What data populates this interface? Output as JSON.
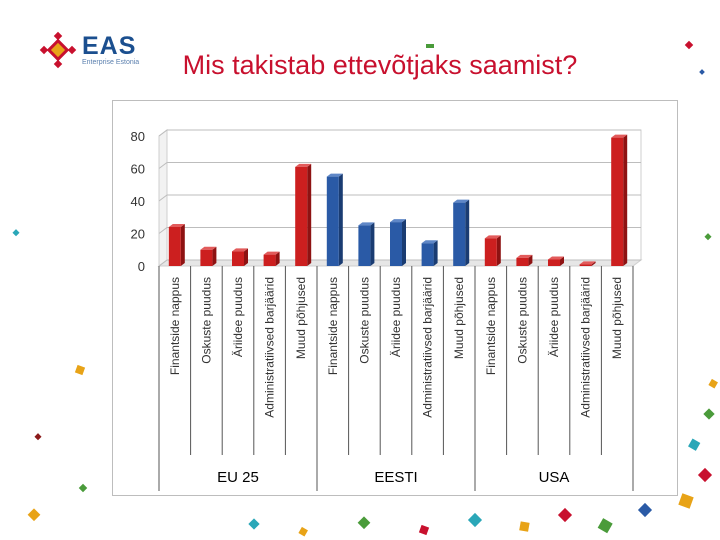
{
  "header": {
    "logo_name": "EAS",
    "logo_subtitle": "Enterprise Estonia",
    "title": "Mis takistab ettevõtjaks saamist?"
  },
  "colors": {
    "red": "#cc1f1f",
    "blue": "#2a5aa6",
    "title": "#c8102e"
  },
  "chart_data": {
    "type": "bar",
    "ylim": [
      0,
      80
    ],
    "yticks": [
      "0",
      "20",
      "40",
      "60",
      "80"
    ],
    "grid": true,
    "style": "3d",
    "categories": [
      "Finantside nappus",
      "Oskuste puudus",
      "Äriidee puudus",
      "Administratiivsed barjäärid",
      "Muud põhjused",
      "Finantside nappus",
      "Oskuste puudus",
      "Äriidee puudus",
      "Administratiivsed barjäärid",
      "Muud põhjused",
      "Finantside nappus",
      "Oskuste puudus",
      "Äriidee puudus",
      "Administratiivsed barjäärid",
      "Muud põhjused"
    ],
    "values": [
      24,
      10,
      9,
      7,
      61,
      55,
      25,
      27,
      14,
      39,
      17,
      5,
      4,
      1,
      79
    ],
    "bar_colors": [
      "red",
      "red",
      "red",
      "red",
      "red",
      "blue",
      "blue",
      "blue",
      "blue",
      "blue",
      "red",
      "red",
      "red",
      "red",
      "red"
    ],
    "groups": [
      {
        "label": "EU 25",
        "start": 0,
        "end": 4
      },
      {
        "label": "EESTI",
        "start": 5,
        "end": 9
      },
      {
        "label": "USA",
        "start": 10,
        "end": 14
      }
    ]
  }
}
